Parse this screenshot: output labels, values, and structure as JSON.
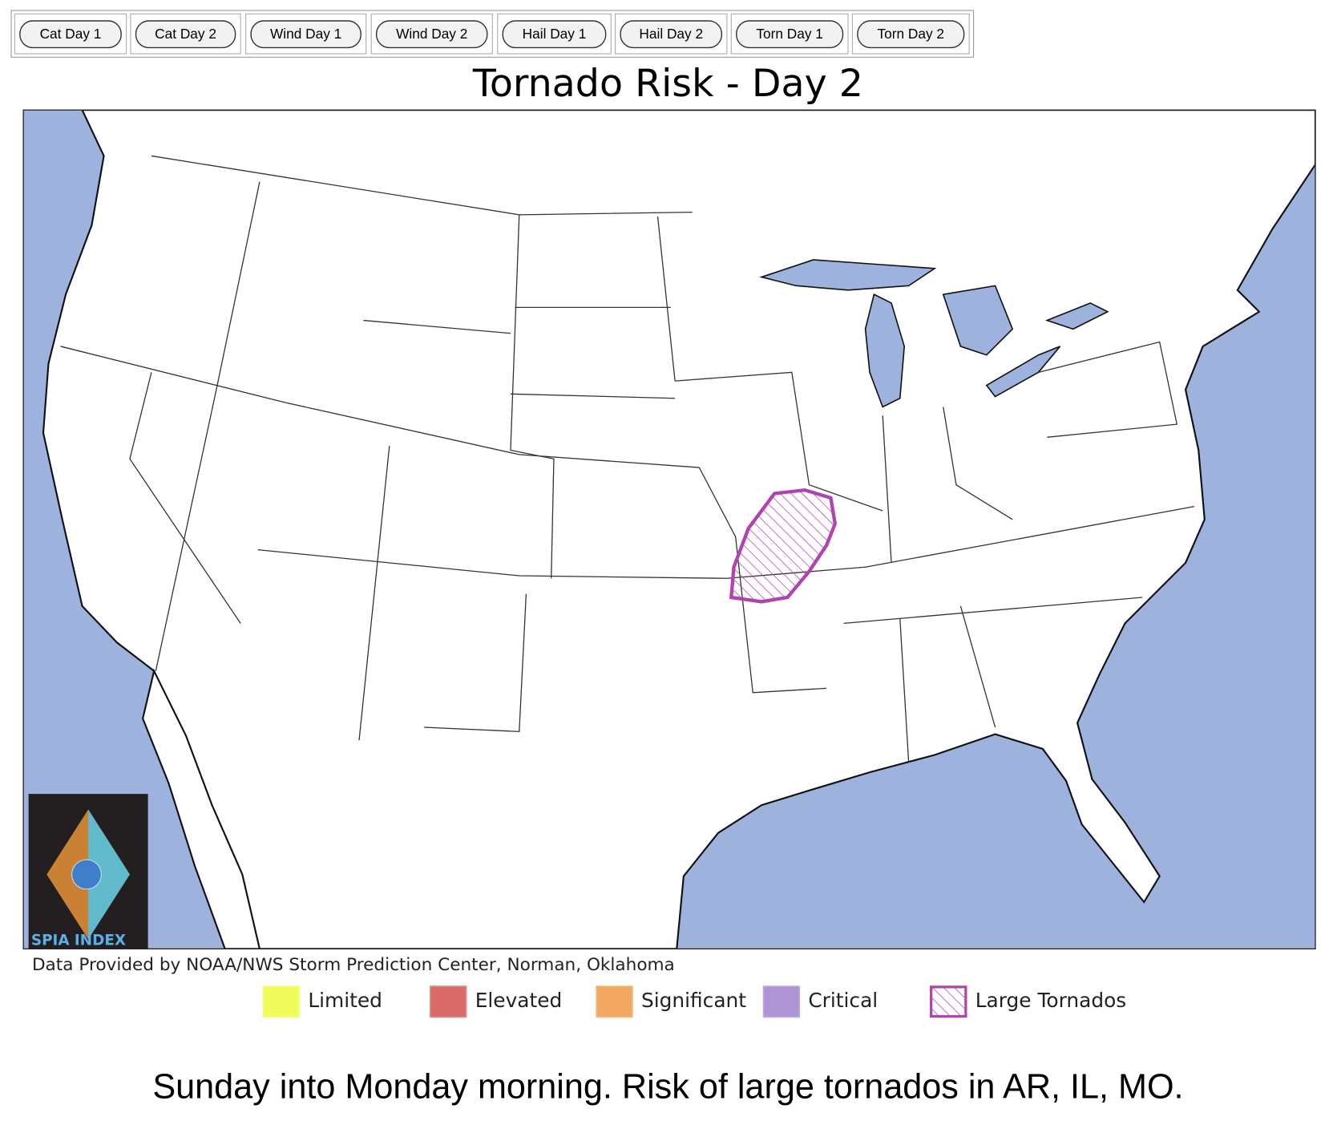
{
  "buttons": [
    "Cat Day 1",
    "Cat Day 2",
    "Wind Day 1",
    "Wind Day 2",
    "Hail Day 1",
    "Hail Day 2",
    "Torn Day 1",
    "Torn Day 2"
  ],
  "title": "Tornado Risk - Day 2",
  "logo_text": "SPIA INDEX",
  "credit": "Data Provided by NOAA/NWS Storm Prediction Center, Norman, Oklahoma",
  "legend": [
    {
      "label": "Limited",
      "color": "#f0fb5c"
    },
    {
      "label": "Elevated",
      "color": "#d96b6b"
    },
    {
      "label": "Significant",
      "color": "#f2a862"
    },
    {
      "label": "Critical",
      "color": "#ae94d2"
    },
    {
      "label": "Large Tornados",
      "color": "#b043b0"
    }
  ],
  "caption": "Sunday into Monday morning. Risk of large tornados in AR, IL, MO."
}
